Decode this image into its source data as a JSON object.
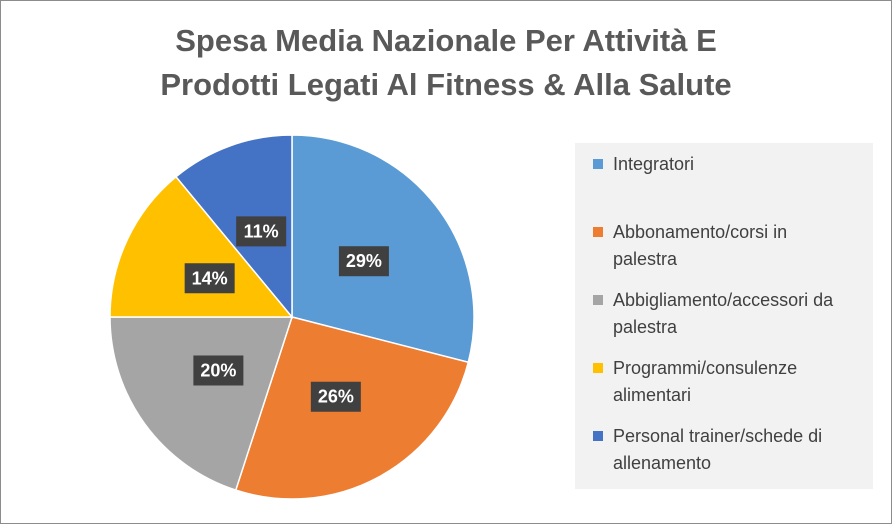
{
  "chart_data": {
    "type": "pie",
    "title_lines": [
      "Spesa Media Nazionale Per Attività E",
      "Prodotti Legati Al Fitness & Alla Salute"
    ],
    "categories": [
      "Integratori",
      "Abbonamento/corsi in palestra",
      "Abbigliamento/accessori da palestra",
      "Programmi/consulenze alimentari",
      "Personal trainer/schede di allenamento"
    ],
    "values": [
      29,
      26,
      20,
      14,
      11
    ],
    "value_labels": [
      "29%",
      "26%",
      "20%",
      "14%",
      "11%"
    ],
    "colors": [
      "#5b9bd5",
      "#ed7d31",
      "#a5a5a5",
      "#ffc000",
      "#4472c4"
    ],
    "legend_placement": "right"
  },
  "legend": {
    "items": [
      {
        "lines": [
          "Integratori"
        ]
      },
      {
        "lines": [
          "Abbonamento/corsi in",
          "palestra"
        ]
      },
      {
        "lines": [
          "Abbigliamento/accessori da",
          "palestra"
        ]
      },
      {
        "lines": [
          "Programmi/consulenze",
          "alimentari"
        ]
      },
      {
        "lines": [
          "Personal trainer/schede di",
          "allenamento"
        ]
      }
    ]
  }
}
